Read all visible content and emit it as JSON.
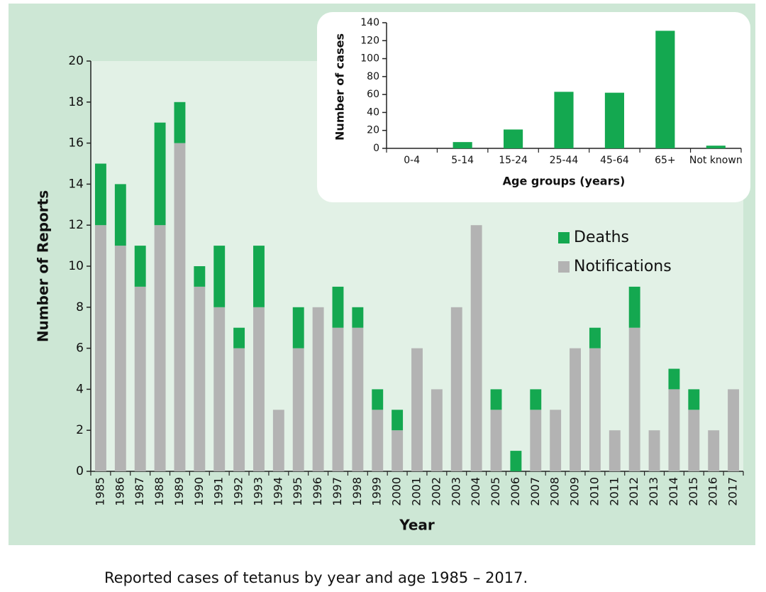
{
  "chart_data": [
    {
      "type": "stacked_bar",
      "categories": [
        "1985",
        "1986",
        "1987",
        "1988",
        "1989",
        "1990",
        "1991",
        "1992",
        "1993",
        "1994",
        "1995",
        "1996",
        "1997",
        "1998",
        "1999",
        "2000",
        "2001",
        "2002",
        "2003",
        "2004",
        "2005",
        "2006",
        "2007",
        "2008",
        "2009",
        "2010",
        "2011",
        "2012",
        "2013",
        "2014",
        "2015",
        "2016",
        "2017"
      ],
      "series": [
        {
          "name": "Notifications",
          "color": "#b3b3b3",
          "values": [
            12,
            11,
            9,
            12,
            16,
            9,
            8,
            6,
            8,
            3,
            6,
            8,
            7,
            7,
            3,
            2,
            6,
            4,
            8,
            12,
            3,
            0,
            3,
            3,
            6,
            6,
            2,
            7,
            2,
            4,
            3,
            2,
            4
          ]
        },
        {
          "name": "Deaths",
          "color": "#14a850",
          "values": [
            3,
            3,
            2,
            5,
            2,
            1,
            3,
            1,
            3,
            0,
            2,
            0,
            2,
            1,
            1,
            1,
            0,
            0,
            0,
            0,
            1,
            1,
            1,
            0,
            0,
            1,
            0,
            2,
            0,
            1,
            1,
            0,
            0
          ]
        }
      ],
      "xlabel": "Year",
      "ylabel": "Number of Reports",
      "ylim": [
        0,
        20
      ],
      "yticks": [
        0,
        2,
        4,
        6,
        8,
        10,
        12,
        14,
        16,
        18,
        20
      ]
    },
    {
      "type": "bar",
      "categories": [
        "0-4",
        "5-14",
        "15-24",
        "25-44",
        "45-64",
        "65+",
        "Not known"
      ],
      "values": [
        0,
        7,
        21,
        63,
        62,
        131,
        3
      ],
      "color": "#14a850",
      "xlabel": "Age groups (years)",
      "ylabel": "Number of cases",
      "ylim": [
        0,
        140
      ],
      "yticks": [
        0,
        20,
        40,
        60,
        80,
        100,
        120,
        140
      ]
    }
  ],
  "caption": "Reported cases of tetanus by year and age 1985 – 2017."
}
